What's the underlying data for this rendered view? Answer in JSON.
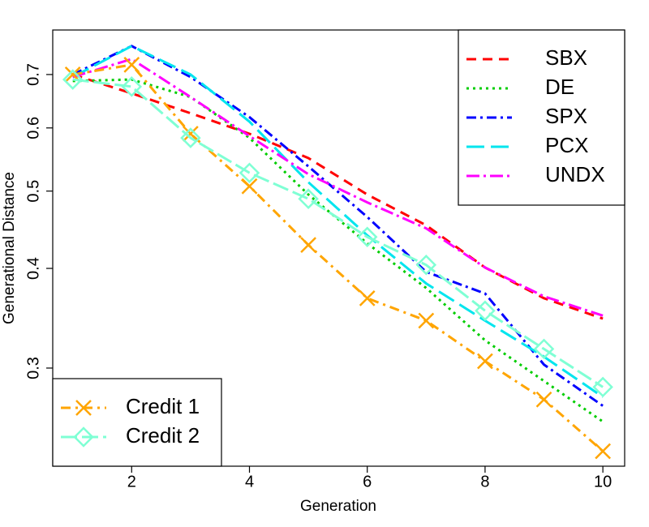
{
  "chart_data": {
    "type": "line",
    "x_label": "Generation",
    "y_label": "Generational Distance",
    "log_y": true,
    "x": [
      1,
      2,
      3,
      4,
      5,
      6,
      7,
      8,
      9,
      10
    ],
    "xlim": [
      0.66,
      10.37
    ],
    "xticks": [
      2,
      4,
      6,
      8,
      10
    ],
    "ylim": [
      0.226,
      0.796
    ],
    "yticks": [
      0.3,
      0.4,
      0.5,
      0.6,
      0.7
    ],
    "series": [
      {
        "name": "SBX",
        "color": "#ff0000",
        "dash": "12,8",
        "legend": "top right",
        "values": [
          0.7,
          0.663,
          0.626,
          0.59,
          0.55,
          0.495,
          0.453,
          0.401,
          0.367,
          0.346
        ]
      },
      {
        "name": "DE",
        "color": "#00cd00",
        "dash": "3,5",
        "legend": "top right",
        "values": [
          0.687,
          0.69,
          0.656,
          0.583,
          0.495,
          0.43,
          0.378,
          0.325,
          0.289,
          0.257
        ]
      },
      {
        "name": "SPX",
        "color": "#0000ff",
        "dash": "12,5,3,5",
        "legend": "top right",
        "values": [
          0.7,
          0.76,
          0.695,
          0.619,
          0.537,
          0.464,
          0.396,
          0.372,
          0.303,
          0.269
        ]
      },
      {
        "name": "PCX",
        "color": "#00e5ee",
        "dash": "22,8",
        "legend": "top right",
        "values": [
          0.695,
          0.76,
          0.7,
          0.611,
          0.513,
          0.44,
          0.383,
          0.344,
          0.31,
          0.276
        ]
      },
      {
        "name": "UNDX",
        "color": "#ff00ff",
        "dash": "16,5,3,5",
        "legend": "top right",
        "values": [
          0.695,
          0.732,
          0.656,
          0.586,
          0.525,
          0.484,
          0.449,
          0.401,
          0.369,
          0.349
        ]
      },
      {
        "name": "Credit 1",
        "color": "#ffa500",
        "dash": "12,6,3,6",
        "marker": "x",
        "legend": "bottom left",
        "values": [
          0.7,
          0.72,
          0.59,
          0.507,
          0.428,
          0.367,
          0.344,
          0.306,
          0.274,
          0.236
        ]
      },
      {
        "name": "Credit 2",
        "color": "#7fffd4",
        "dash": "20,6",
        "marker": "diamond",
        "legend": "bottom left",
        "values": [
          0.69,
          0.676,
          0.583,
          0.527,
          0.489,
          0.438,
          0.404,
          0.354,
          0.317,
          0.284
        ]
      }
    ]
  }
}
